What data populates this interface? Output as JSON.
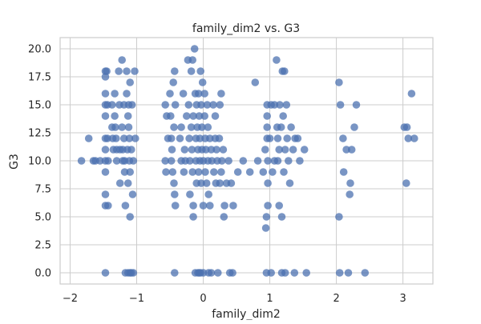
{
  "chart_data": {
    "type": "scatter",
    "title": "family_dim2 vs. G3",
    "xlabel": "family_dim2",
    "ylabel": "G3",
    "xlim": [
      -2.15,
      3.45
    ],
    "ylim": [
      -1.0,
      21.0
    ],
    "xticks": [
      -2,
      -1,
      0,
      1,
      2,
      3
    ],
    "xtick_labels": [
      "−2",
      "−1",
      "0",
      "1",
      "2",
      "3"
    ],
    "yticks": [
      0,
      2.5,
      5,
      7.5,
      10,
      12.5,
      15,
      17.5,
      20
    ],
    "ytick_labels": [
      "0.0",
      "2.5",
      "5.0",
      "7.5",
      "10.0",
      "12.5",
      "15.0",
      "17.5",
      "20.0"
    ],
    "grid": true,
    "marker_color": "#4c72b0",
    "points": [
      [
        -1.83,
        10
      ],
      [
        -1.72,
        12
      ],
      [
        -1.65,
        10
      ],
      [
        -1.62,
        10
      ],
      [
        -1.55,
        10
      ],
      [
        -1.47,
        18
      ],
      [
        -1.47,
        17.5
      ],
      [
        -1.47,
        16
      ],
      [
        -1.47,
        15
      ],
      [
        -1.47,
        14
      ],
      [
        -1.47,
        12
      ],
      [
        -1.47,
        11
      ],
      [
        -1.47,
        10
      ],
      [
        -1.47,
        9
      ],
      [
        -1.47,
        7
      ],
      [
        -1.47,
        6
      ],
      [
        -1.47,
        0
      ],
      [
        -1.45,
        18
      ],
      [
        -1.44,
        15
      ],
      [
        -1.44,
        12
      ],
      [
        -1.43,
        10
      ],
      [
        -1.43,
        6
      ],
      [
        -1.37,
        15
      ],
      [
        -1.37,
        13
      ],
      [
        -1.36,
        12
      ],
      [
        -1.35,
        11
      ],
      [
        -1.33,
        16
      ],
      [
        -1.33,
        14
      ],
      [
        -1.32,
        13
      ],
      [
        -1.31,
        12
      ],
      [
        -1.3,
        11
      ],
      [
        -1.3,
        10
      ],
      [
        -1.27,
        18
      ],
      [
        -1.26,
        15
      ],
      [
        -1.25,
        11
      ],
      [
        -1.25,
        8
      ],
      [
        -1.22,
        19
      ],
      [
        -1.22,
        13
      ],
      [
        -1.21,
        11
      ],
      [
        -1.21,
        10
      ],
      [
        -1.19,
        15
      ],
      [
        -1.19,
        12
      ],
      [
        -1.18,
        10
      ],
      [
        -1.18,
        9
      ],
      [
        -1.17,
        6
      ],
      [
        -1.17,
        0
      ],
      [
        -1.15,
        18
      ],
      [
        -1.15,
        16
      ],
      [
        -1.14,
        11
      ],
      [
        -1.13,
        14
      ],
      [
        -1.13,
        8
      ],
      [
        -1.13,
        0
      ],
      [
        -1.12,
        15
      ],
      [
        -1.12,
        13
      ],
      [
        -1.11,
        12
      ],
      [
        -1.11,
        10
      ],
      [
        -1.1,
        17
      ],
      [
        -1.1,
        9
      ],
      [
        -1.1,
        5
      ],
      [
        -1.1,
        0
      ],
      [
        -1.08,
        11
      ],
      [
        -1.08,
        0
      ],
      [
        -1.07,
        15
      ],
      [
        -1.06,
        7
      ],
      [
        -1.05,
        10
      ],
      [
        -1.05,
        0
      ],
      [
        -1.03,
        18
      ],
      [
        -1.02,
        12
      ],
      [
        -0.57,
        15
      ],
      [
        -0.57,
        10
      ],
      [
        -0.56,
        9
      ],
      [
        -0.55,
        14
      ],
      [
        -0.53,
        12
      ],
      [
        -0.5,
        16
      ],
      [
        -0.49,
        14
      ],
      [
        -0.48,
        12
      ],
      [
        -0.48,
        10
      ],
      [
        -0.47,
        11
      ],
      [
        -0.46,
        9
      ],
      [
        -0.45,
        17
      ],
      [
        -0.44,
        13
      ],
      [
        -0.44,
        8
      ],
      [
        -0.43,
        18
      ],
      [
        -0.43,
        7
      ],
      [
        -0.43,
        0
      ],
      [
        -0.42,
        15
      ],
      [
        -0.42,
        6
      ],
      [
        -0.35,
        12
      ],
      [
        -0.33,
        13
      ],
      [
        -0.33,
        10
      ],
      [
        -0.3,
        16
      ],
      [
        -0.29,
        9
      ],
      [
        -0.28,
        11
      ],
      [
        -0.27,
        10
      ],
      [
        -0.25,
        14
      ],
      [
        -0.23,
        19
      ],
      [
        -0.22,
        15
      ],
      [
        -0.21,
        12
      ],
      [
        -0.2,
        10
      ],
      [
        -0.2,
        7
      ],
      [
        -0.18,
        18
      ],
      [
        -0.18,
        13
      ],
      [
        -0.17,
        11
      ],
      [
        -0.16,
        19
      ],
      [
        -0.16,
        9
      ],
      [
        -0.15,
        14
      ],
      [
        -0.15,
        6
      ],
      [
        -0.15,
        5
      ],
      [
        -0.13,
        20
      ],
      [
        -0.12,
        16
      ],
      [
        -0.12,
        0
      ],
      [
        -0.11,
        12
      ],
      [
        -0.11,
        10
      ],
      [
        -0.1,
        15
      ],
      [
        -0.1,
        8
      ],
      [
        -0.09,
        13
      ],
      [
        -0.08,
        11
      ],
      [
        -0.08,
        0
      ],
      [
        -0.07,
        16
      ],
      [
        -0.07,
        9
      ],
      [
        -0.06,
        14
      ],
      [
        -0.06,
        0
      ],
      [
        -0.05,
        12
      ],
      [
        -0.05,
        10
      ],
      [
        -0.04,
        18
      ],
      [
        -0.04,
        0
      ],
      [
        -0.03,
        15
      ],
      [
        -0.03,
        8
      ],
      [
        -0.02,
        13
      ],
      [
        -0.02,
        11
      ],
      [
        -0.01,
        17
      ],
      [
        0.0,
        10
      ],
      [
        0.0,
        6
      ],
      [
        0.0,
        0
      ],
      [
        0.02,
        16
      ],
      [
        0.02,
        14
      ],
      [
        0.03,
        12
      ],
      [
        0.03,
        9
      ],
      [
        0.04,
        11
      ],
      [
        0.05,
        8
      ],
      [
        0.06,
        15
      ],
      [
        0.07,
        13
      ],
      [
        0.07,
        10
      ],
      [
        0.08,
        7
      ],
      [
        0.08,
        0
      ],
      [
        0.1,
        12
      ],
      [
        0.1,
        6
      ],
      [
        0.12,
        11
      ],
      [
        0.12,
        0
      ],
      [
        0.13,
        10
      ],
      [
        0.15,
        15
      ],
      [
        0.16,
        9
      ],
      [
        0.18,
        14
      ],
      [
        0.18,
        12
      ],
      [
        0.19,
        8
      ],
      [
        0.2,
        11
      ],
      [
        0.21,
        10
      ],
      [
        0.22,
        0
      ],
      [
        0.24,
        12
      ],
      [
        0.25,
        15
      ],
      [
        0.25,
        8
      ],
      [
        0.27,
        16
      ],
      [
        0.27,
        9
      ],
      [
        0.28,
        10
      ],
      [
        0.3,
        11
      ],
      [
        0.31,
        5
      ],
      [
        0.32,
        6
      ],
      [
        0.35,
        8
      ],
      [
        0.38,
        10
      ],
      [
        0.4,
        0
      ],
      [
        0.42,
        8
      ],
      [
        0.44,
        0
      ],
      [
        0.45,
        6
      ],
      [
        0.52,
        9
      ],
      [
        0.6,
        10
      ],
      [
        0.7,
        9
      ],
      [
        0.78,
        17
      ],
      [
        0.82,
        10
      ],
      [
        0.9,
        9
      ],
      [
        0.93,
        11
      ],
      [
        0.94,
        4
      ],
      [
        0.95,
        5
      ],
      [
        0.95,
        0
      ],
      [
        0.96,
        15
      ],
      [
        0.96,
        14
      ],
      [
        0.96,
        13
      ],
      [
        0.96,
        12
      ],
      [
        0.97,
        10
      ],
      [
        0.97,
        8
      ],
      [
        0.97,
        6
      ],
      [
        1.0,
        12
      ],
      [
        1.02,
        15
      ],
      [
        1.02,
        0
      ],
      [
        1.04,
        9
      ],
      [
        1.07,
        10
      ],
      [
        1.07,
        15
      ],
      [
        1.1,
        19
      ],
      [
        1.11,
        13
      ],
      [
        1.12,
        12
      ],
      [
        1.12,
        10
      ],
      [
        1.14,
        6
      ],
      [
        1.14,
        11
      ],
      [
        1.15,
        15
      ],
      [
        1.17,
        13
      ],
      [
        1.18,
        5
      ],
      [
        1.18,
        0
      ],
      [
        1.19,
        18
      ],
      [
        1.2,
        14
      ],
      [
        1.21,
        9
      ],
      [
        1.22,
        18
      ],
      [
        1.23,
        11
      ],
      [
        1.23,
        0
      ],
      [
        1.25,
        15
      ],
      [
        1.26,
        12
      ],
      [
        1.28,
        10
      ],
      [
        1.3,
        8
      ],
      [
        1.32,
        13
      ],
      [
        1.35,
        11
      ],
      [
        1.37,
        0
      ],
      [
        1.38,
        12
      ],
      [
        1.42,
        12
      ],
      [
        1.45,
        10
      ],
      [
        1.52,
        11
      ],
      [
        1.55,
        0
      ],
      [
        2.04,
        17
      ],
      [
        2.04,
        5
      ],
      [
        2.05,
        0
      ],
      [
        2.06,
        15
      ],
      [
        2.1,
        12
      ],
      [
        2.11,
        9
      ],
      [
        2.15,
        11
      ],
      [
        2.18,
        0
      ],
      [
        2.2,
        7
      ],
      [
        2.21,
        8
      ],
      [
        2.23,
        11
      ],
      [
        2.27,
        13
      ],
      [
        2.3,
        15
      ],
      [
        2.43,
        0
      ],
      [
        3.02,
        13
      ],
      [
        3.05,
        8
      ],
      [
        3.06,
        13
      ],
      [
        3.08,
        12
      ],
      [
        3.13,
        16
      ],
      [
        3.17,
        12
      ]
    ]
  }
}
